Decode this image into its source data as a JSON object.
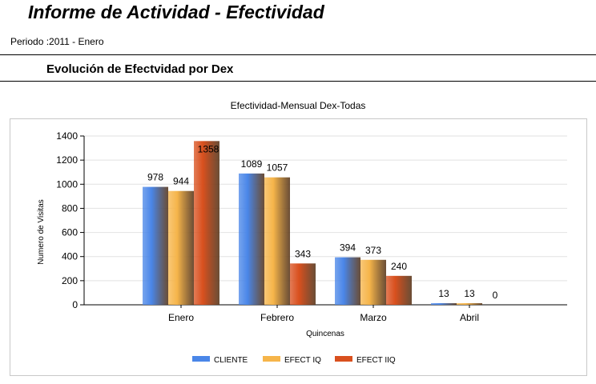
{
  "report": {
    "title": "Informe de Actividad - Efectividad",
    "period": "Periodo :2011 - Enero",
    "section_title": "Evolución de Efectvidad por Dex"
  },
  "chart_data": {
    "type": "bar",
    "title": "Efectividad-Mensual Dex-Todas",
    "xlabel": "Quincenas",
    "ylabel": "Numero de Visitas",
    "categories": [
      "Enero",
      "Febrero",
      "Marzo",
      "Abril"
    ],
    "series": [
      {
        "name": "CLIENTE",
        "values": [
          978,
          1089,
          394,
          13
        ],
        "color": "#4a86e8"
      },
      {
        "name": "EFECT IQ",
        "values": [
          944,
          1057,
          373,
          13
        ],
        "color": "#f6b54a"
      },
      {
        "name": "EFECT IIQ",
        "values": [
          1358,
          343,
          240,
          0
        ],
        "color": "#d9501e"
      }
    ],
    "ylim": [
      0,
      1400
    ],
    "yticks": [
      0,
      200,
      400,
      600,
      800,
      1000,
      1200,
      1400
    ],
    "grid": true,
    "legend": "bottom-center"
  }
}
